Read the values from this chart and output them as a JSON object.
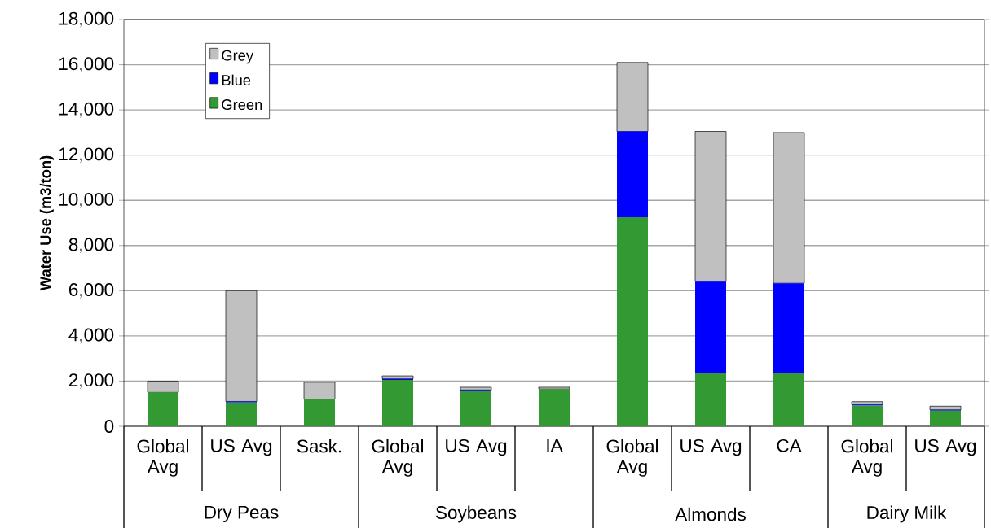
{
  "chart_data": {
    "type": "bar",
    "stacked": true,
    "ylabel": "Water Use  (m3/ton)",
    "categories": [
      "Global Avg",
      "US Avg",
      "Sask.",
      "Global Avg",
      "US Avg",
      "IA",
      "Global Avg",
      "US Avg",
      "CA",
      "Global Avg",
      "US Avg"
    ],
    "annotations": [
      "Dry Peas",
      "Soybeans",
      "Almonds",
      "Dairy Milk"
    ],
    "series": [
      {
        "name": "Green",
        "color": "#339933",
        "values": [
          1500,
          1050,
          1200,
          2050,
          1550,
          1650,
          9250,
          2350,
          2350,
          920,
          690
        ]
      },
      {
        "name": "Blue",
        "color": "#0000ff",
        "values": [
          0,
          50,
          0,
          50,
          60,
          0,
          3800,
          4050,
          3980,
          40,
          40
        ]
      },
      {
        "name": "Grey",
        "color": "#c0c0c0",
        "values": [
          500,
          4900,
          750,
          130,
          120,
          80,
          3050,
          6650,
          6670,
          130,
          160
        ]
      }
    ],
    "ylim": [
      0,
      18000
    ],
    "yticks": [
      0,
      {
        "value": 2000,
        "label": "2,000"
      },
      {
        "value": 4000,
        "label": "4,000"
      },
      {
        "value": 6000,
        "label": "6,000"
      },
      {
        "value": 8000,
        "label": "8,000"
      },
      {
        "value": 10000,
        "label": "10,000"
      },
      {
        "value": 12000,
        "label": "12,000"
      },
      {
        "value": 14000,
        "label": "14,000"
      },
      {
        "value": 16000,
        "label": "16,000"
      },
      {
        "value": 18000,
        "label": "18,000"
      }
    ],
    "grid": "y",
    "legend": "top left"
  }
}
